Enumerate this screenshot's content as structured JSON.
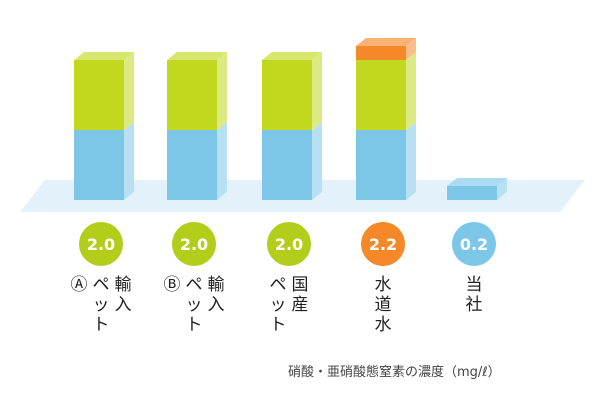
{
  "chart_data": {
    "type": "bar",
    "stacked": true,
    "three_d": true,
    "categories": [
      [
        "輸入",
        "ペット",
        "Ⓐ"
      ],
      [
        "輸入",
        "ペット",
        "Ⓑ"
      ],
      [
        "国産",
        "ペット"
      ],
      [
        "水道水"
      ],
      [
        "当社"
      ]
    ],
    "value_labels": [
      "2.0",
      "2.0",
      "2.0",
      "2.2",
      "0.2"
    ],
    "values": [
      2.0,
      2.0,
      2.0,
      2.2,
      0.2
    ],
    "series": [
      {
        "values": [
          1.0,
          1.0,
          1.0,
          1.0,
          0.2
        ],
        "color": "#7cc7e8"
      },
      {
        "values": [
          1.0,
          1.0,
          1.0,
          1.0,
          0
        ],
        "color": "#c1d81f"
      },
      {
        "values": [
          0,
          0,
          0,
          0.2,
          0
        ],
        "color": "#f5892a"
      }
    ],
    "badge_colors": [
      "#b4cd1b",
      "#b4cd1b",
      "#b4cd1b",
      "#f5892a",
      "#7cc7e8"
    ],
    "ylim": [
      0,
      2.4
    ],
    "grid": false,
    "unit_note": "硝酸・亜硝酸態窒素の濃度（mg/ℓ）"
  }
}
